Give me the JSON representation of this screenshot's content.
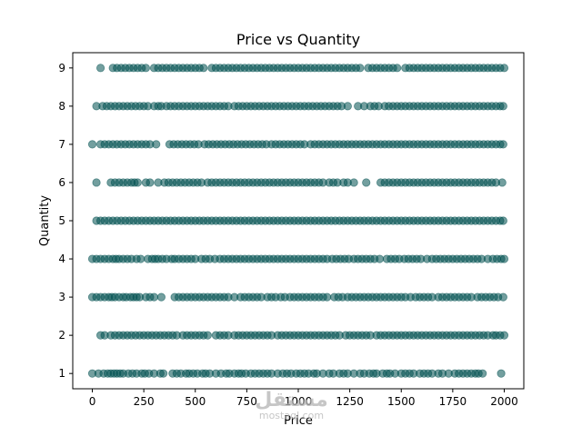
{
  "chart_data": {
    "type": "scatter",
    "title": "Price vs Quantity",
    "xlabel": "Price",
    "ylabel": "Quantity",
    "xlim": [
      -95,
      2095
    ],
    "ylim": [
      0.6,
      9.4
    ],
    "xticks": [
      0,
      250,
      500,
      750,
      1000,
      1250,
      1500,
      1750,
      2000
    ],
    "yticks": [
      1,
      2,
      3,
      4,
      5,
      6,
      7,
      8,
      9
    ],
    "marker_color": "#005050",
    "marker_alpha": 0.55,
    "grid": false,
    "series": [
      {
        "values": [
          {
            "q": 1,
            "p": [
              0,
              30,
              55,
              75,
              90,
              105,
              120,
              135,
              150,
              175,
              195,
              215,
              240,
              255,
              275,
              300,
              330,
              345,
              390,
              410,
              430,
              455,
              470,
              490,
              510,
              535,
              550,
              570,
              600,
              625,
              650,
              665,
              690,
              710,
              725,
              745,
              770,
              790,
              810,
              830,
              850,
              870,
              900,
              925,
              945,
              965,
              990,
              1010,
              1030,
              1050,
              1075,
              1090,
              1120,
              1150,
              1170,
              1200,
              1220,
              1240,
              1270,
              1300,
              1320,
              1345,
              1365,
              1380,
              1410,
              1430,
              1445,
              1470,
              1500,
              1520,
              1540,
              1560,
              1590,
              1610,
              1630,
              1650,
              1680,
              1700,
              1730,
              1760,
              1780,
              1800,
              1820,
              1840,
              1860,
              1875,
              1895,
              1985
            ]
          },
          {
            "q": 2,
            "p": [
              40,
              60,
              90,
              110,
              130,
              150,
              170,
              190,
              210,
              230,
              250,
              270,
              290,
              310,
              330,
              350,
              370,
              390,
              410,
              440,
              460,
              480,
              500,
              520,
              540,
              560,
              600,
              620,
              640,
              660,
              690,
              710,
              730,
              750,
              770,
              790,
              810,
              830,
              850,
              870,
              900,
              920,
              940,
              960,
              980,
              1000,
              1020,
              1040,
              1060,
              1080,
              1100,
              1120,
              1140,
              1160,
              1180,
              1200,
              1230,
              1250,
              1270,
              1290,
              1310,
              1330,
              1350,
              1380,
              1400,
              1420,
              1440,
              1460,
              1480,
              1500,
              1520,
              1540,
              1560,
              1580,
              1600,
              1620,
              1640,
              1660,
              1680,
              1700,
              1720,
              1740,
              1760,
              1780,
              1800,
              1820,
              1840,
              1860,
              1880,
              1900,
              1920,
              1945,
              1960,
              1980,
              2000
            ]
          },
          {
            "q": 3,
            "p": [
              0,
              20,
              40,
              60,
              80,
              95,
              110,
              130,
              150,
              165,
              185,
              200,
              215,
              230,
              260,
              280,
              300,
              335,
              400,
              420,
              440,
              460,
              480,
              500,
              520,
              540,
              560,
              580,
              600,
              620,
              640,
              660,
              690,
              720,
              740,
              760,
              780,
              800,
              820,
              850,
              870,
              890,
              915,
              935,
              960,
              980,
              1000,
              1020,
              1040,
              1060,
              1080,
              1100,
              1120,
              1140,
              1175,
              1195,
              1215,
              1240,
              1260,
              1280,
              1300,
              1320,
              1340,
              1360,
              1380,
              1400,
              1420,
              1440,
              1460,
              1480,
              1500,
              1520,
              1545,
              1570,
              1590,
              1610,
              1630,
              1650,
              1680,
              1700,
              1720,
              1740,
              1760,
              1780,
              1800,
              1820,
              1840,
              1870,
              1890,
              1910,
              1930,
              1950,
              1970,
              1995
            ]
          },
          {
            "q": 4,
            "p": [
              0,
              20,
              40,
              60,
              80,
              100,
              115,
              130,
              150,
              170,
              190,
              215,
              235,
              270,
              290,
              305,
              320,
              340,
              360,
              385,
              400,
              420,
              440,
              460,
              480,
              500,
              530,
              550,
              570,
              595,
              620,
              640,
              660,
              680,
              700,
              720,
              740,
              760,
              780,
              800,
              820,
              840,
              860,
              880,
              900,
              920,
              940,
              960,
              980,
              1000,
              1020,
              1040,
              1060,
              1080,
              1100,
              1120,
              1140,
              1165,
              1185,
              1205,
              1225,
              1245,
              1270,
              1290,
              1310,
              1330,
              1350,
              1370,
              1395,
              1430,
              1450,
              1470,
              1490,
              1515,
              1535,
              1555,
              1575,
              1595,
              1625,
              1650,
              1670,
              1690,
              1710,
              1730,
              1750,
              1770,
              1790,
              1810,
              1830,
              1850,
              1870,
              1890,
              1920,
              1945,
              1965,
              1985,
              2000
            ]
          },
          {
            "q": 5,
            "p": [
              20,
              40,
              60,
              80,
              100,
              120,
              140,
              160,
              180,
              200,
              220,
              240,
              260,
              280,
              300,
              320,
              340,
              360,
              380,
              400,
              420,
              440,
              460,
              480,
              500,
              520,
              540,
              560,
              580,
              600,
              620,
              640,
              660,
              680,
              700,
              720,
              740,
              760,
              780,
              800,
              820,
              840,
              860,
              880,
              900,
              920,
              940,
              960,
              980,
              1000,
              1020,
              1040,
              1060,
              1080,
              1100,
              1120,
              1140,
              1160,
              1180,
              1200,
              1220,
              1240,
              1260,
              1280,
              1300,
              1320,
              1340,
              1360,
              1380,
              1400,
              1420,
              1440,
              1460,
              1480,
              1500,
              1520,
              1540,
              1560,
              1580,
              1600,
              1620,
              1640,
              1660,
              1680,
              1700,
              1720,
              1740,
              1760,
              1780,
              1800,
              1820,
              1840,
              1860,
              1880,
              1900,
              1920,
              1940,
              1960,
              1980,
              1995
            ]
          },
          {
            "q": 6,
            "p": [
              20,
              90,
              110,
              130,
              150,
              170,
              190,
              205,
              220,
              260,
              280,
              320,
              350,
              370,
              390,
              410,
              430,
              450,
              470,
              490,
              510,
              530,
              560,
              580,
              600,
              620,
              640,
              660,
              680,
              700,
              720,
              740,
              760,
              780,
              800,
              820,
              840,
              860,
              880,
              900,
              920,
              940,
              960,
              980,
              1000,
              1020,
              1040,
              1060,
              1080,
              1100,
              1120,
              1150,
              1170,
              1190,
              1220,
              1240,
              1270,
              1330,
              1400,
              1420,
              1440,
              1460,
              1480,
              1500,
              1520,
              1540,
              1560,
              1580,
              1600,
              1620,
              1640,
              1660,
              1680,
              1700,
              1720,
              1740,
              1760,
              1780,
              1800,
              1820,
              1840,
              1860,
              1880,
              1900,
              1920,
              1940,
              1960,
              1990
            ]
          },
          {
            "q": 7,
            "p": [
              0,
              40,
              60,
              80,
              100,
              120,
              140,
              160,
              180,
              200,
              220,
              240,
              260,
              280,
              310,
              375,
              395,
              415,
              435,
              455,
              475,
              495,
              515,
              545,
              565,
              585,
              605,
              625,
              645,
              665,
              685,
              705,
              725,
              745,
              765,
              785,
              805,
              825,
              845,
              870,
              890,
              910,
              930,
              950,
              970,
              990,
              1010,
              1030,
              1060,
              1080,
              1100,
              1120,
              1140,
              1160,
              1180,
              1200,
              1220,
              1240,
              1260,
              1280,
              1300,
              1320,
              1340,
              1360,
              1380,
              1400,
              1420,
              1440,
              1460,
              1480,
              1500,
              1520,
              1540,
              1560,
              1580,
              1600,
              1620,
              1640,
              1660,
              1680,
              1700,
              1720,
              1740,
              1760,
              1780,
              1800,
              1820,
              1840,
              1860,
              1880,
              1900,
              1920,
              1940,
              1960,
              1980,
              1995
            ]
          },
          {
            "q": 8,
            "p": [
              20,
              50,
              70,
              90,
              110,
              130,
              150,
              170,
              190,
              210,
              230,
              250,
              270,
              300,
              320,
              335,
              360,
              380,
              400,
              420,
              440,
              460,
              480,
              500,
              520,
              540,
              560,
              580,
              600,
              620,
              640,
              660,
              690,
              710,
              730,
              750,
              770,
              790,
              810,
              830,
              850,
              870,
              890,
              910,
              930,
              950,
              970,
              990,
              1010,
              1030,
              1050,
              1070,
              1090,
              1110,
              1130,
              1150,
              1170,
              1190,
              1210,
              1240,
              1290,
              1320,
              1350,
              1370,
              1390,
              1420,
              1440,
              1460,
              1480,
              1500,
              1520,
              1540,
              1560,
              1580,
              1600,
              1620,
              1640,
              1660,
              1680,
              1700,
              1720,
              1740,
              1760,
              1780,
              1800,
              1820,
              1840,
              1860,
              1880,
              1900,
              1920,
              1940,
              1960,
              1980,
              1995
            ]
          },
          {
            "q": 9,
            "p": [
              40,
              100,
              120,
              140,
              160,
              180,
              200,
              220,
              240,
              260,
              300,
              320,
              340,
              360,
              380,
              400,
              420,
              440,
              460,
              480,
              500,
              520,
              540,
              580,
              600,
              620,
              640,
              660,
              680,
              700,
              720,
              740,
              760,
              780,
              800,
              820,
              840,
              860,
              880,
              900,
              920,
              940,
              960,
              980,
              1000,
              1020,
              1040,
              1060,
              1080,
              1100,
              1120,
              1140,
              1160,
              1180,
              1200,
              1220,
              1240,
              1260,
              1280,
              1300,
              1340,
              1360,
              1380,
              1400,
              1420,
              1440,
              1460,
              1480,
              1520,
              1540,
              1560,
              1580,
              1600,
              1620,
              1640,
              1660,
              1680,
              1700,
              1720,
              1740,
              1760,
              1780,
              1800,
              1820,
              1840,
              1860,
              1880,
              1900,
              1920,
              1940,
              1960,
              1980,
              2000
            ]
          }
        ]
      }
    ]
  },
  "watermark": {
    "logo": "مستقل",
    "site": "mostaql.com"
  }
}
